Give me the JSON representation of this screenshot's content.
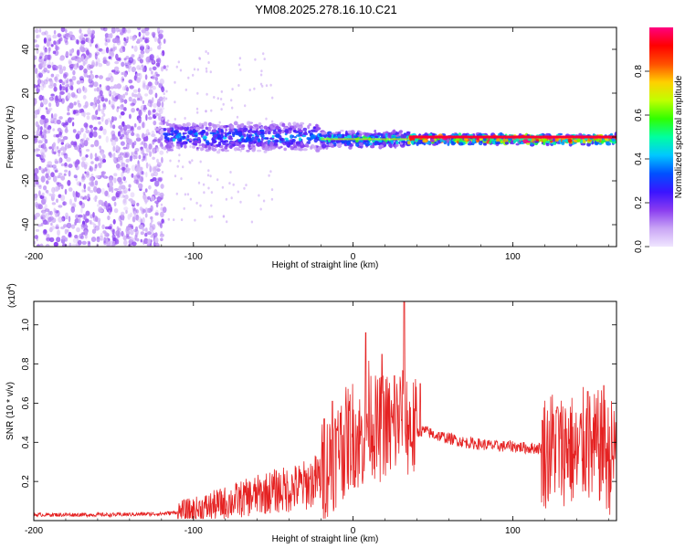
{
  "title": "YM08.2025.278.16.10.C21",
  "chart_data": [
    {
      "type": "heatmap",
      "title": "YM08.2025.278.16.10.C21",
      "xlabel": "Height of straight line (km)",
      "ylabel": "Frequency (Hz)",
      "xlim": [
        -200,
        165
      ],
      "ylim": [
        -50,
        50
      ],
      "x_ticks": [
        -200,
        -100,
        0,
        100
      ],
      "x_tick_labels": [
        "-200",
        "-100",
        "0",
        "100"
      ],
      "y_ticks": [
        40,
        20,
        0,
        -20,
        -40
      ],
      "y_tick_labels": [
        "40",
        "20",
        "0",
        "-20",
        "-40"
      ],
      "colorbar": {
        "label": "Normalized spectral amplitude",
        "range": [
          0,
          1
        ],
        "ticks": [
          0.0,
          0.2,
          0.4,
          0.6,
          0.8
        ],
        "tick_labels": [
          "0.0",
          "0.2",
          "0.4",
          "0.6",
          "0.8"
        ],
        "colors": [
          "#f0e6ff",
          "#c9a5f5",
          "#8a3cf0",
          "#3a14ff",
          "#0050ff",
          "#00c8ff",
          "#00ffa0",
          "#30ff00",
          "#c0ff00",
          "#ffd000",
          "#ff5000",
          "#ff0000",
          "#ff0080"
        ]
      },
      "description_of_field": [
        {
          "x_range": [
            -200,
            -118
          ],
          "freq_range": [
            -50,
            50
          ],
          "amplitude": 0.1,
          "pattern": "scattered purple noise"
        },
        {
          "x_range": [
            -118,
            -20
          ],
          "freq_center": 0,
          "freq_halfwidth": 6,
          "amplitude": 0.35,
          "pattern": "noisy band"
        },
        {
          "x_range": [
            -20,
            35
          ],
          "freq_center": -1,
          "freq_halfwidth": 3,
          "amplitude": 0.5,
          "pattern": "narrowing band"
        },
        {
          "x_range": [
            35,
            165
          ],
          "freq_center": -1,
          "freq_halfwidth": 1.5,
          "amplitude": 1.0,
          "pattern": "strong narrow line"
        }
      ]
    },
    {
      "type": "line",
      "xlabel": "Height of straight line (km)",
      "ylabel": "SNR (10 * v/v)",
      "y_multiplier_label": "(x10",
      "y_multiplier_exponent": "4",
      "y_multiplier_close": ")",
      "xlim": [
        -200,
        165
      ],
      "ylim": [
        0,
        1.12
      ],
      "x_ticks": [
        -200,
        -100,
        0,
        100
      ],
      "x_tick_labels": [
        "-200",
        "-100",
        "0",
        "100"
      ],
      "y_ticks": [
        0.2,
        0.4,
        0.6,
        0.8,
        1.0
      ],
      "y_tick_labels": [
        "0.2",
        "0.4",
        "0.6",
        "0.8",
        "1.0"
      ],
      "series": [
        {
          "name": "SNR",
          "color": "#e52222",
          "x": [
            -200,
            -150,
            -120,
            -100,
            -90,
            -80,
            -70,
            -60,
            -50,
            -40,
            -30,
            -20,
            -15,
            -10,
            -5,
            0,
            5,
            10,
            15,
            20,
            25,
            30,
            35,
            40,
            45,
            50,
            60,
            70,
            80,
            90,
            100,
            110,
            118,
            122,
            126,
            130,
            135,
            140,
            145,
            150,
            155,
            160,
            165
          ],
          "y": [
            0.03,
            0.03,
            0.035,
            0.05,
            0.07,
            0.09,
            0.11,
            0.13,
            0.15,
            0.16,
            0.18,
            0.22,
            0.3,
            0.35,
            0.4,
            0.45,
            0.4,
            0.55,
            0.45,
            0.5,
            0.45,
            0.55,
            0.48,
            0.45,
            0.46,
            0.44,
            0.42,
            0.4,
            0.39,
            0.38,
            0.38,
            0.37,
            0.37,
            0.35,
            0.4,
            0.35,
            0.4,
            0.3,
            0.4,
            0.35,
            0.38,
            0.32,
            0.35
          ],
          "peaks": [
            {
              "x": -18,
              "y": 0.52
            },
            {
              "x": -13,
              "y": 0.61
            },
            {
              "x": -8,
              "y": 0.55
            },
            {
              "x": 8,
              "y": 0.96
            },
            {
              "x": 18,
              "y": 0.85
            },
            {
              "x": 26,
              "y": 0.74
            },
            {
              "x": 32,
              "y": 1.12
            },
            {
              "x": 42,
              "y": 0.7
            },
            {
              "x": 128,
              "y": 0.58
            },
            {
              "x": 147,
              "y": 0.66
            },
            {
              "x": 157,
              "y": 0.69
            }
          ]
        }
      ]
    }
  ]
}
